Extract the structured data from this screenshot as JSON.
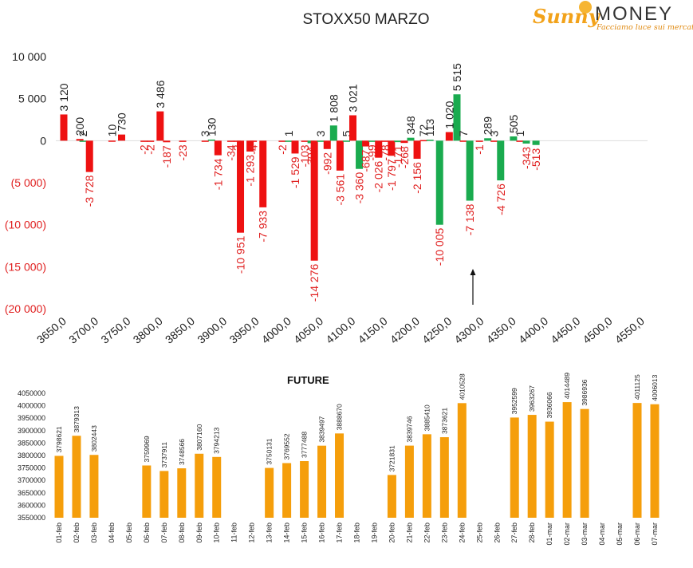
{
  "header": {
    "title": "STOXX50 MARZO",
    "logo_part1": "Sunny",
    "logo_part2": "MONEY",
    "logo_tagline": "Facciamo luce sui mercati"
  },
  "colors": {
    "red": "#ee1111",
    "green": "#1aab4f",
    "orange": "#f59e0b",
    "text": "#222222",
    "neg_text": "#e02020"
  },
  "chart_data": [
    {
      "type": "bar",
      "title": "STOXX50 MARZO",
      "categories": [
        "3650,0",
        "3700,0",
        "3750,0",
        "3800,0",
        "3850,0",
        "3900,0",
        "3950,0",
        "4000,0",
        "4050,0",
        "4100,0",
        "4150,0",
        "4200,0",
        "4250,0",
        "4300,0",
        "4350,0",
        "4400,0",
        "4450,0",
        "4500,0",
        "4550,0"
      ],
      "ylim": [
        -20000,
        10000
      ],
      "yticks": [
        "10 000",
        "5 000",
        "0",
        "(5 000)",
        "(10 000)",
        "(15 000)",
        "(20 000)"
      ],
      "grid": false,
      "bars": [
        {
          "x": 3650,
          "value": 3120,
          "label": "3 120",
          "color": "red"
        },
        {
          "x": 3675,
          "value": 200,
          "label": "200",
          "color": "red"
        },
        {
          "x": 3680,
          "value": 2,
          "label": "2",
          "color": "green"
        },
        {
          "x": 3690,
          "value": -3728,
          "label": "-3 728",
          "color": "red"
        },
        {
          "x": 3725,
          "value": 10,
          "label": "10",
          "color": "red"
        },
        {
          "x": 3740,
          "value": 730,
          "label": "730",
          "color": "red"
        },
        {
          "x": 3775,
          "value": -2,
          "label": "-2",
          "color": "red"
        },
        {
          "x": 3785,
          "value": -2,
          "label": "-2",
          "color": "red"
        },
        {
          "x": 3800,
          "value": 3486,
          "label": "3 486",
          "color": "red"
        },
        {
          "x": 3810,
          "value": -187,
          "label": "-187",
          "color": "red"
        },
        {
          "x": 3835,
          "value": -23,
          "label": "-23",
          "color": "red"
        },
        {
          "x": 3870,
          "value": 3,
          "label": "3",
          "color": "red"
        },
        {
          "x": 3880,
          "value": 130,
          "label": "130",
          "color": "green"
        },
        {
          "x": 3890,
          "value": -1734,
          "label": "-1 734",
          "color": "red"
        },
        {
          "x": 3910,
          "value": -34,
          "label": "-34",
          "color": "red"
        },
        {
          "x": 3920,
          "value": -2,
          "label": "-2",
          "color": "red"
        },
        {
          "x": 3925,
          "value": -10951,
          "label": "-10 951",
          "color": "red"
        },
        {
          "x": 3940,
          "value": -1293,
          "label": "-1 293",
          "color": "red"
        },
        {
          "x": 3945,
          "value": -4,
          "label": "-4",
          "color": "red"
        },
        {
          "x": 3960,
          "value": -7933,
          "label": "-7 933",
          "color": "red"
        },
        {
          "x": 3990,
          "value": -2,
          "label": "-2",
          "color": "red"
        },
        {
          "x": 4000,
          "value": 1,
          "label": "1",
          "color": "green"
        },
        {
          "x": 4010,
          "value": -1529,
          "label": "-1 529",
          "color": "red"
        },
        {
          "x": 4025,
          "value": -103,
          "label": "-103",
          "color": "red"
        },
        {
          "x": 4035,
          "value": -304,
          "label": "-304",
          "color": "green"
        },
        {
          "x": 4040,
          "value": -14276,
          "label": "-14 276",
          "color": "red"
        },
        {
          "x": 4050,
          "value": 3,
          "label": "3",
          "color": "green"
        },
        {
          "x": 4060,
          "value": -992,
          "label": "-992",
          "color": "red"
        },
        {
          "x": 4070,
          "value": 1808,
          "label": "1 808",
          "color": "green"
        },
        {
          "x": 4080,
          "value": -3561,
          "label": "-3 561",
          "color": "red"
        },
        {
          "x": 4090,
          "value": 5,
          "label": "5",
          "color": "green"
        },
        {
          "x": 4100,
          "value": 3021,
          "label": "3 021",
          "color": "red"
        },
        {
          "x": 4110,
          "value": -3360,
          "label": "-3 360",
          "color": "green"
        },
        {
          "x": 4120,
          "value": -687,
          "label": "-687",
          "color": "red"
        },
        {
          "x": 4130,
          "value": -99,
          "label": "-99",
          "color": "green"
        },
        {
          "x": 4140,
          "value": -2026,
          "label": "-2 026",
          "color": "red"
        },
        {
          "x": 4150,
          "value": -78,
          "label": "-78",
          "color": "red"
        },
        {
          "x": 4160,
          "value": -1797,
          "label": "-1 797",
          "color": "red"
        },
        {
          "x": 4170,
          "value": -171,
          "label": "-171",
          "color": "green"
        },
        {
          "x": 4180,
          "value": -268,
          "label": "-268",
          "color": "red"
        },
        {
          "x": 4190,
          "value": 348,
          "label": "348",
          "color": "green"
        },
        {
          "x": 4200,
          "value": -2156,
          "label": "-2 156",
          "color": "red"
        },
        {
          "x": 4210,
          "value": 72,
          "label": "72",
          "color": "red"
        },
        {
          "x": 4220,
          "value": 113,
          "label": "113",
          "color": "green"
        },
        {
          "x": 4235,
          "value": -10005,
          "label": "-10 005",
          "color": "green"
        },
        {
          "x": 4250,
          "value": 1020,
          "label": "1 020",
          "color": "red"
        },
        {
          "x": 4262,
          "value": 5515,
          "label": "5 515",
          "color": "green"
        },
        {
          "x": 4272,
          "value": 7,
          "label": "7",
          "color": "red"
        },
        {
          "x": 4282,
          "value": -7138,
          "label": "-7 138",
          "color": "green"
        },
        {
          "x": 4297,
          "value": -1,
          "label": "-1",
          "color": "red"
        },
        {
          "x": 4310,
          "value": 289,
          "label": "289",
          "color": "green"
        },
        {
          "x": 4320,
          "value": 3,
          "label": "3",
          "color": "red"
        },
        {
          "x": 4330,
          "value": -4726,
          "label": "-4 726",
          "color": "green"
        },
        {
          "x": 4350,
          "value": 505,
          "label": "505",
          "color": "green"
        },
        {
          "x": 4360,
          "value": 1,
          "label": "1",
          "color": "red"
        },
        {
          "x": 4370,
          "value": -343,
          "label": "-343",
          "color": "green"
        },
        {
          "x": 4385,
          "value": -513,
          "label": "-513",
          "color": "green"
        }
      ]
    },
    {
      "type": "bar",
      "title": "FUTURE",
      "ylim": [
        3550000,
        4050000
      ],
      "yticks": [
        "4050000",
        "4000000",
        "3950000",
        "3900000",
        "3850000",
        "3800000",
        "3750000",
        "3700000",
        "3650000",
        "3600000",
        "3550000"
      ],
      "grid": false,
      "categories": [
        "01-feb",
        "02-feb",
        "03-feb",
        "04-feb",
        "05-feb",
        "06-feb",
        "07-feb",
        "08-feb",
        "09-feb",
        "10-feb",
        "11-feb",
        "12-feb",
        "13-feb",
        "14-feb",
        "15-feb",
        "16-feb",
        "17-feb",
        "18-feb",
        "19-feb",
        "20-feb",
        "21-feb",
        "22-feb",
        "23-feb",
        "24-feb",
        "25-feb",
        "26-feb",
        "27-feb",
        "28-feb",
        "01-mar",
        "02-mar",
        "03-mar",
        "04-mar",
        "05-mar",
        "06-mar",
        "07-mar"
      ],
      "values": [
        3798621,
        3879313,
        3802443,
        null,
        null,
        3759969,
        3737911,
        3748566,
        3807160,
        3794213,
        null,
        null,
        3750131,
        3769552,
        3777488,
        3839497,
        3888670,
        null,
        null,
        3721831,
        3839746,
        3885410,
        3873621,
        4010528,
        null,
        null,
        3952599,
        3963267,
        3936066,
        4014489,
        3986936,
        null,
        null,
        4011125,
        4006013
      ]
    }
  ]
}
